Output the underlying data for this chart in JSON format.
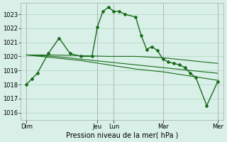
{
  "bg_color": "#d8f0e8",
  "grid_color": "#b8d8c8",
  "line_color": "#1a6b1a",
  "marker_color": "#1a6b1a",
  "xlabel": "Pression niveau de la mer( hPa )",
  "ylim": [
    1015.5,
    1023.8
  ],
  "yticks": [
    1016,
    1017,
    1018,
    1019,
    1020,
    1021,
    1022,
    1023
  ],
  "xtick_labels": [
    "Dim",
    "",
    "Jeu",
    "Lun",
    "",
    "Mar",
    "",
    "Mer"
  ],
  "xtick_positions": [
    0,
    8,
    13,
    16,
    20,
    25,
    30,
    35
  ],
  "xlim": [
    -1,
    36
  ],
  "series_main": {
    "x": [
      0,
      1,
      2,
      4,
      6,
      8,
      10,
      12,
      13,
      14,
      15,
      16,
      17,
      18,
      20,
      21,
      22,
      23,
      24,
      25,
      26,
      27,
      28,
      29,
      30,
      31,
      33,
      35
    ],
    "y": [
      1018.0,
      1018.4,
      1018.8,
      1020.2,
      1021.3,
      1020.2,
      1020.0,
      1020.0,
      1022.1,
      1023.2,
      1023.5,
      1023.2,
      1023.2,
      1023.0,
      1022.8,
      1021.5,
      1020.5,
      1020.7,
      1020.4,
      1019.8,
      1019.6,
      1019.5,
      1019.4,
      1019.2,
      1018.8,
      1018.5,
      1016.5,
      1018.2
    ]
  },
  "series2": {
    "x": [
      0,
      5,
      10,
      15,
      20,
      25,
      30,
      35
    ],
    "y": [
      1020.1,
      1020.1,
      1020.05,
      1020.0,
      1020.0,
      1019.9,
      1019.7,
      1019.5
    ]
  },
  "series3": {
    "x": [
      0,
      5,
      10,
      15,
      20,
      25,
      30,
      35
    ],
    "y": [
      1020.1,
      1020.0,
      1019.8,
      1019.6,
      1019.4,
      1019.2,
      1019.0,
      1018.8
    ]
  },
  "series4": {
    "x": [
      0,
      5,
      10,
      15,
      20,
      25,
      30,
      35
    ],
    "y": [
      1020.1,
      1019.9,
      1019.7,
      1019.4,
      1019.1,
      1018.9,
      1018.6,
      1018.3
    ]
  }
}
